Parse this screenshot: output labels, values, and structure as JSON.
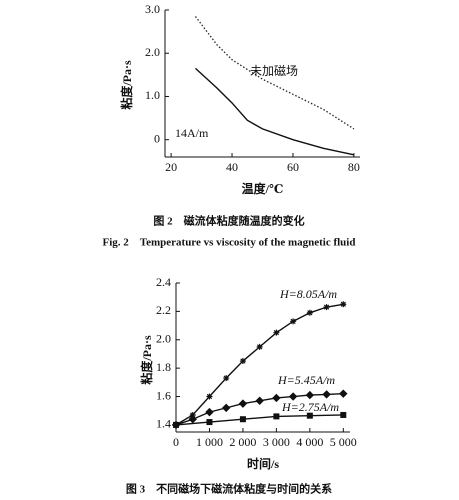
{
  "chart_data": [
    {
      "type": "line",
      "caption": "图 2　磁流体粘度随温度的变化",
      "caption_en": "Fig. 2　Temperature vs viscosity of the magnetic fluid",
      "x_label": "温度/℃",
      "y_label": "粘度/Pa·s",
      "xlim": [
        18,
        82
      ],
      "ylim": [
        -0.4,
        3.0
      ],
      "xticks": [
        20,
        40,
        60,
        80
      ],
      "yticks": [
        0,
        {
          "value": 1,
          "label": "1.0"
        },
        {
          "value": 2,
          "label": "2.0"
        },
        {
          "value": 3,
          "label": "3.0"
        }
      ],
      "series": [
        {
          "name": "未加磁场",
          "color": "#222",
          "dash": "dotted",
          "marker": "none",
          "x": [
            28,
            35,
            40,
            50,
            60,
            70,
            80
          ],
          "values": [
            2.85,
            2.2,
            1.85,
            1.4,
            1.05,
            0.7,
            0.25
          ]
        },
        {
          "name": "14A/m",
          "color": "#111",
          "dash": "solid",
          "marker": "none",
          "x": [
            28,
            35,
            40,
            45,
            50,
            60,
            70,
            80
          ],
          "values": [
            1.65,
            1.2,
            0.85,
            0.45,
            0.25,
            0.0,
            -0.2,
            -0.35
          ]
        }
      ]
    },
    {
      "type": "line",
      "caption": "图 3　不同磁场下磁流体粘度与时间的关系",
      "x_label": "时间/s",
      "y_label": "粘度/Pa·s",
      "xlim": [
        0,
        5200
      ],
      "ylim": [
        1.35,
        2.4
      ],
      "xticks": [
        0,
        {
          "value": 1000,
          "label": "1 000"
        },
        {
          "value": 2000,
          "label": "2 000"
        },
        {
          "value": 3000,
          "label": "3 000"
        },
        {
          "value": 4000,
          "label": "4 000"
        },
        {
          "value": 5000,
          "label": "5 000"
        }
      ],
      "yticks": [
        1.4,
        1.6,
        1.8,
        {
          "value": 2,
          "label": "2.0"
        },
        2.2,
        2.4
      ],
      "series": [
        {
          "name": "H=8.05A/m",
          "color": "#111",
          "dash": "solid",
          "marker": "star",
          "x": [
            0,
            500,
            1000,
            1500,
            2000,
            2500,
            3000,
            3500,
            4000,
            4500,
            5000
          ],
          "values": [
            1.4,
            1.47,
            1.6,
            1.73,
            1.85,
            1.95,
            2.05,
            2.13,
            2.19,
            2.23,
            2.25
          ]
        },
        {
          "name": "H=5.45A/m",
          "color": "#111",
          "dash": "solid",
          "marker": "diamond",
          "x": [
            0,
            500,
            1000,
            1500,
            2000,
            2500,
            3000,
            3500,
            4000,
            4500,
            5000
          ],
          "values": [
            1.4,
            1.44,
            1.49,
            1.52,
            1.55,
            1.57,
            1.59,
            1.6,
            1.61,
            1.615,
            1.62
          ]
        },
        {
          "name": "H=2.75A/m",
          "color": "#111",
          "dash": "solid",
          "marker": "square",
          "x": [
            0,
            1000,
            2000,
            3000,
            4000,
            5000
          ],
          "values": [
            1.4,
            1.42,
            1.44,
            1.46,
            1.465,
            1.47
          ]
        }
      ]
    }
  ]
}
